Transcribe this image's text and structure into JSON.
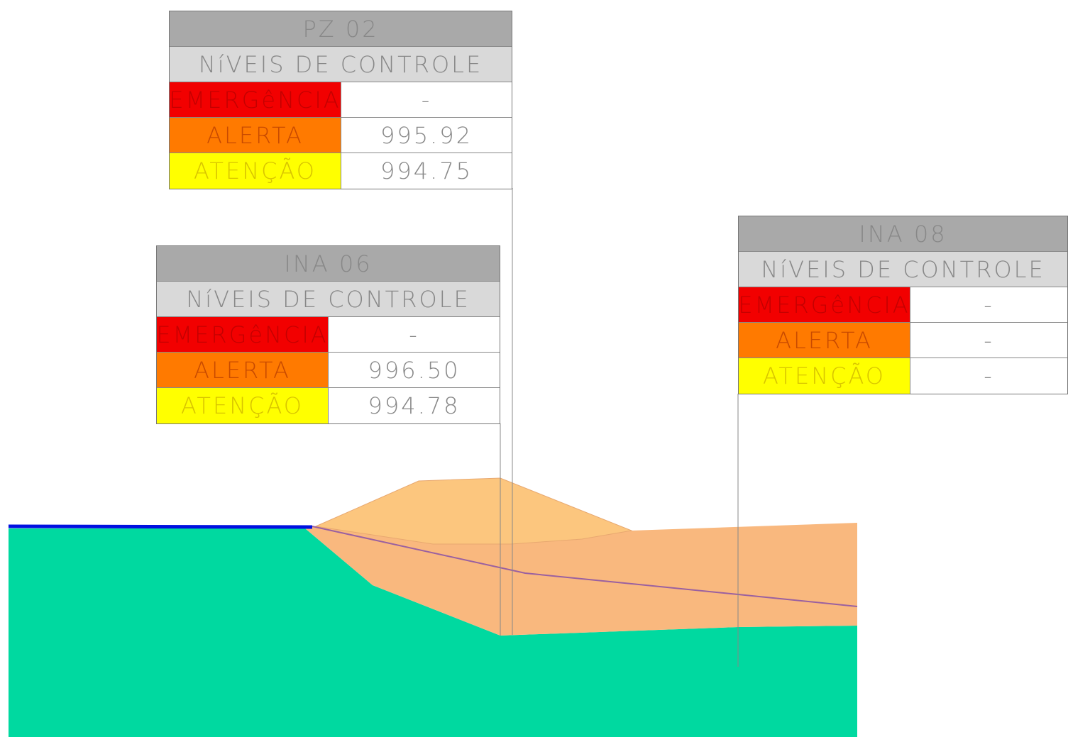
{
  "tables": [
    {
      "title": "PZ 02",
      "subtitle": "NíVEIS DE CONTROLE",
      "rows": [
        {
          "label": "EMERGêNCIA",
          "value": "-"
        },
        {
          "label": "ALERTA",
          "value": "995.92"
        },
        {
          "label": "ATENÇÃO",
          "value": "994.75"
        }
      ]
    },
    {
      "title": "INA 06",
      "subtitle": "NíVEIS DE CONTROLE",
      "rows": [
        {
          "label": "EMERGêNCIA",
          "value": "-"
        },
        {
          "label": "ALERTA",
          "value": "996.50"
        },
        {
          "label": "ATENÇÃO",
          "value": "994.78"
        }
      ]
    },
    {
      "title": "INA 08",
      "subtitle": "NíVEIS DE CONTROLE",
      "rows": [
        {
          "label": "EMERGêNCIA",
          "value": "-"
        },
        {
          "label": "ALERTA",
          "value": "-"
        },
        {
          "label": "ATENÇÃO",
          "value": "-"
        }
      ]
    }
  ]
}
